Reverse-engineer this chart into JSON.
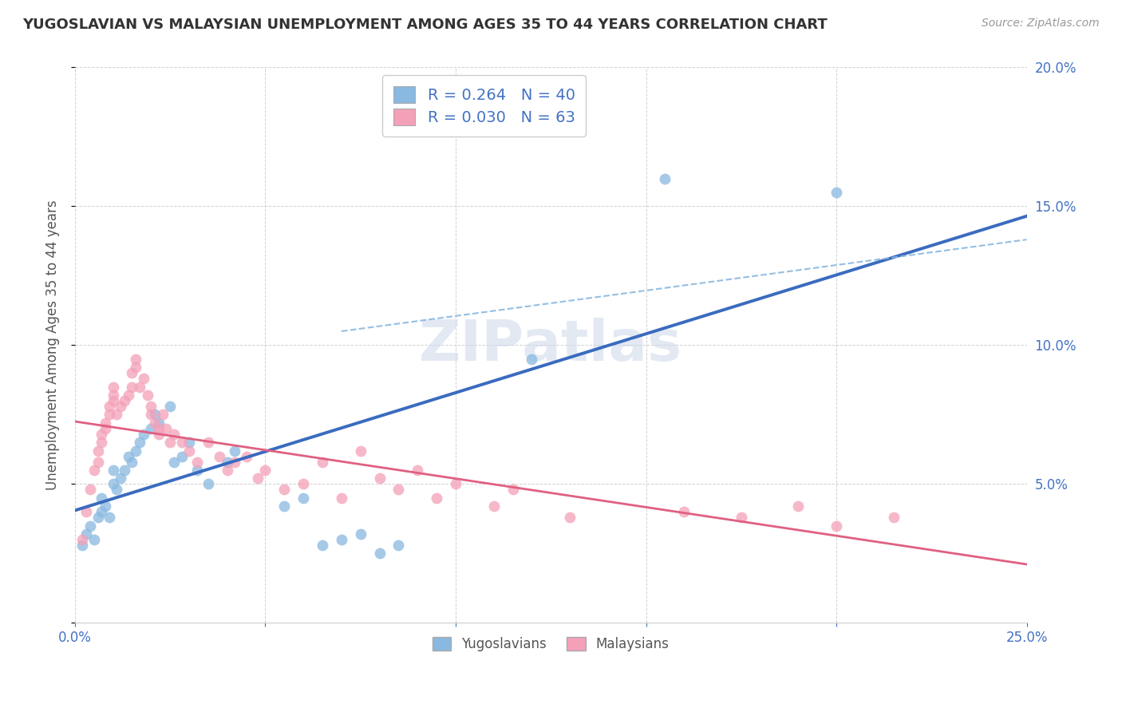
{
  "title": "YUGOSLAVIAN VS MALAYSIAN UNEMPLOYMENT AMONG AGES 35 TO 44 YEARS CORRELATION CHART",
  "source": "Source: ZipAtlas.com",
  "ylabel": "Unemployment Among Ages 35 to 44 years",
  "xlim": [
    0.0,
    0.25
  ],
  "ylim": [
    0.0,
    0.2
  ],
  "xticks": [
    0.0,
    0.05,
    0.1,
    0.15,
    0.2,
    0.25
  ],
  "yticks": [
    0.0,
    0.05,
    0.1,
    0.15,
    0.2
  ],
  "xticklabels": [
    "0.0%",
    "",
    "",
    "",
    "",
    "25.0%"
  ],
  "yticklabels_right": [
    "",
    "5.0%",
    "10.0%",
    "15.0%",
    "20.0%"
  ],
  "watermark": "ZIPatlas",
  "yug_color": "#89b8e0",
  "mal_color": "#f4a0b8",
  "yug_line_color": "#3a6bbf",
  "mal_line_color": "#e06080",
  "dashed_line_color": "#89b8e0",
  "background_color": "#ffffff",
  "grid_color": "#cccccc",
  "yug_R": "0.264",
  "yug_N": "40",
  "mal_R": "0.030",
  "mal_N": "63",
  "yug_scatter": [
    [
      0.002,
      0.028
    ],
    [
      0.003,
      0.032
    ],
    [
      0.004,
      0.035
    ],
    [
      0.005,
      0.03
    ],
    [
      0.006,
      0.038
    ],
    [
      0.007,
      0.04
    ],
    [
      0.007,
      0.045
    ],
    [
      0.008,
      0.042
    ],
    [
      0.009,
      0.038
    ],
    [
      0.01,
      0.05
    ],
    [
      0.01,
      0.055
    ],
    [
      0.011,
      0.048
    ],
    [
      0.012,
      0.052
    ],
    [
      0.013,
      0.055
    ],
    [
      0.014,
      0.06
    ],
    [
      0.015,
      0.058
    ],
    [
      0.016,
      0.062
    ],
    [
      0.017,
      0.065
    ],
    [
      0.018,
      0.068
    ],
    [
      0.02,
      0.07
    ],
    [
      0.021,
      0.075
    ],
    [
      0.022,
      0.072
    ],
    [
      0.025,
      0.078
    ],
    [
      0.026,
      0.058
    ],
    [
      0.028,
      0.06
    ],
    [
      0.03,
      0.065
    ],
    [
      0.032,
      0.055
    ],
    [
      0.035,
      0.05
    ],
    [
      0.04,
      0.058
    ],
    [
      0.042,
      0.062
    ],
    [
      0.055,
      0.042
    ],
    [
      0.06,
      0.045
    ],
    [
      0.065,
      0.028
    ],
    [
      0.07,
      0.03
    ],
    [
      0.075,
      0.032
    ],
    [
      0.08,
      0.025
    ],
    [
      0.085,
      0.028
    ],
    [
      0.12,
      0.095
    ],
    [
      0.155,
      0.16
    ],
    [
      0.2,
      0.155
    ]
  ],
  "mal_scatter": [
    [
      0.002,
      0.03
    ],
    [
      0.003,
      0.04
    ],
    [
      0.004,
      0.048
    ],
    [
      0.005,
      0.055
    ],
    [
      0.006,
      0.058
    ],
    [
      0.006,
      0.062
    ],
    [
      0.007,
      0.065
    ],
    [
      0.007,
      0.068
    ],
    [
      0.008,
      0.07
    ],
    [
      0.008,
      0.072
    ],
    [
      0.009,
      0.075
    ],
    [
      0.009,
      0.078
    ],
    [
      0.01,
      0.08
    ],
    [
      0.01,
      0.082
    ],
    [
      0.01,
      0.085
    ],
    [
      0.011,
      0.075
    ],
    [
      0.012,
      0.078
    ],
    [
      0.013,
      0.08
    ],
    [
      0.014,
      0.082
    ],
    [
      0.015,
      0.085
    ],
    [
      0.015,
      0.09
    ],
    [
      0.016,
      0.092
    ],
    [
      0.016,
      0.095
    ],
    [
      0.017,
      0.085
    ],
    [
      0.018,
      0.088
    ],
    [
      0.019,
      0.082
    ],
    [
      0.02,
      0.075
    ],
    [
      0.02,
      0.078
    ],
    [
      0.021,
      0.072
    ],
    [
      0.022,
      0.07
    ],
    [
      0.022,
      0.068
    ],
    [
      0.023,
      0.075
    ],
    [
      0.024,
      0.07
    ],
    [
      0.025,
      0.065
    ],
    [
      0.026,
      0.068
    ],
    [
      0.028,
      0.065
    ],
    [
      0.03,
      0.062
    ],
    [
      0.032,
      0.058
    ],
    [
      0.035,
      0.065
    ],
    [
      0.038,
      0.06
    ],
    [
      0.04,
      0.055
    ],
    [
      0.042,
      0.058
    ],
    [
      0.045,
      0.06
    ],
    [
      0.048,
      0.052
    ],
    [
      0.05,
      0.055
    ],
    [
      0.055,
      0.048
    ],
    [
      0.06,
      0.05
    ],
    [
      0.065,
      0.058
    ],
    [
      0.07,
      0.045
    ],
    [
      0.075,
      0.062
    ],
    [
      0.08,
      0.052
    ],
    [
      0.085,
      0.048
    ],
    [
      0.09,
      0.055
    ],
    [
      0.095,
      0.045
    ],
    [
      0.1,
      0.05
    ],
    [
      0.11,
      0.042
    ],
    [
      0.115,
      0.048
    ],
    [
      0.13,
      0.038
    ],
    [
      0.16,
      0.04
    ],
    [
      0.175,
      0.038
    ],
    [
      0.19,
      0.042
    ],
    [
      0.2,
      0.035
    ],
    [
      0.215,
      0.038
    ]
  ]
}
